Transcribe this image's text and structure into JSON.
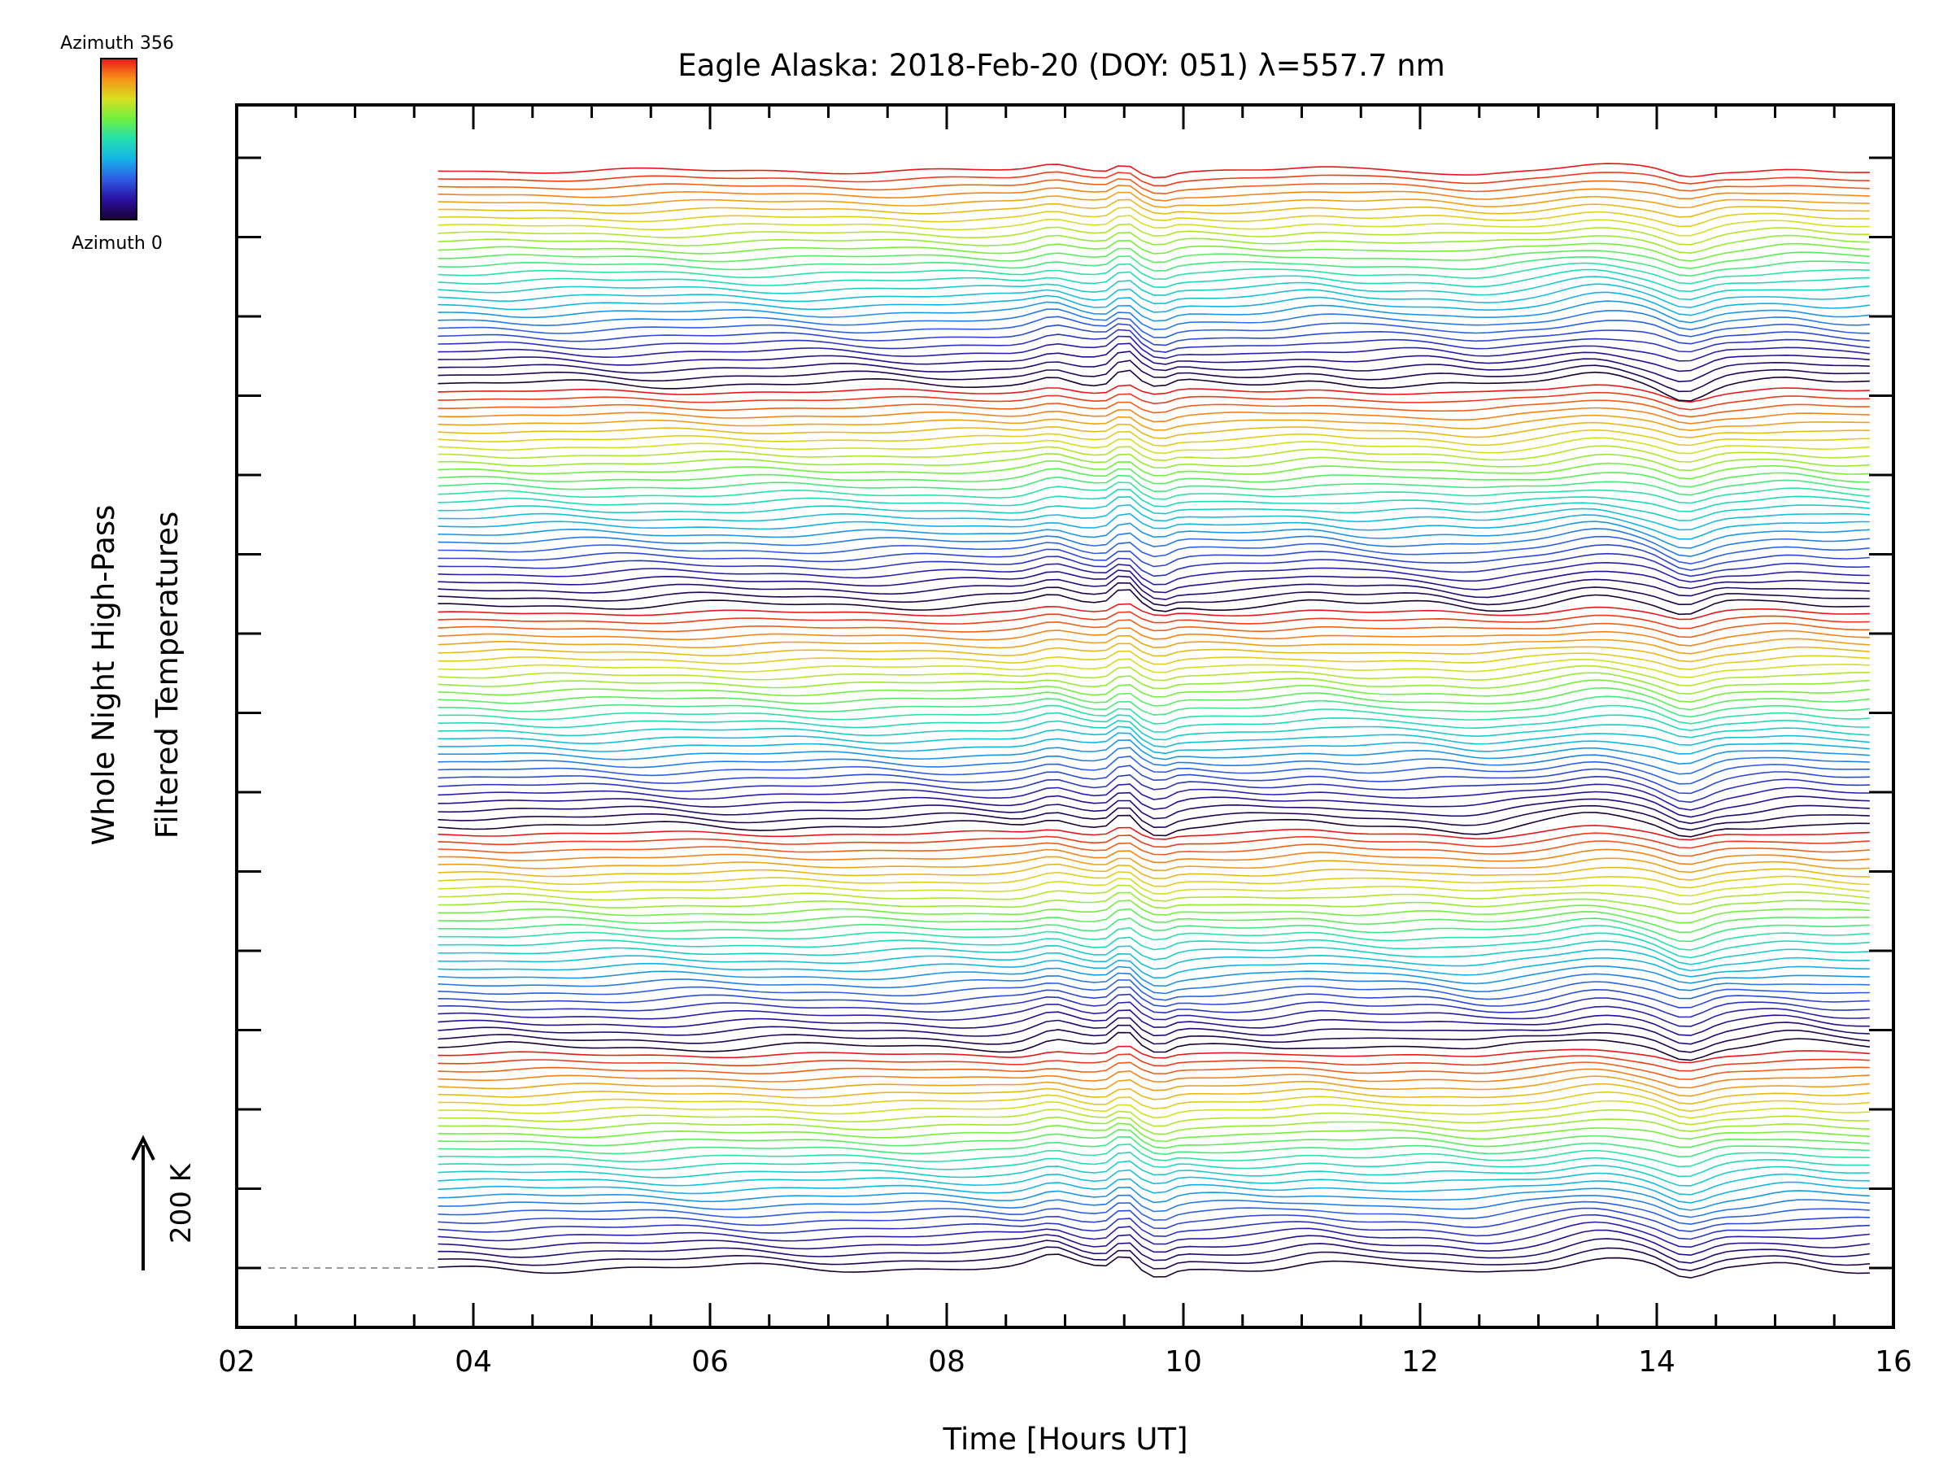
{
  "chart_data": {
    "type": "line",
    "title": "Eagle Alaska: 2018-Feb-20 (DOY: 051) λ=557.7 nm",
    "xlabel": "Time [Hours UT]",
    "ylabel_lines": [
      "Whole Night High-Pass",
      "Filtered Temperatures"
    ],
    "xlim": [
      2,
      16
    ],
    "x_ticks": [
      "02",
      "04",
      "06",
      "08",
      "10",
      "12",
      "14",
      "16"
    ],
    "x_tick_values": [
      2,
      4,
      6,
      8,
      10,
      12,
      14,
      16
    ],
    "grid": false,
    "colorbar": {
      "top_label": "Azimuth 356",
      "bottom_label": "Azimuth 0",
      "colormap": "rainbow",
      "colors": [
        "#1a0033",
        "#2a10a0",
        "#2e5ae6",
        "#14b4e6",
        "#22e0b0",
        "#70f040",
        "#d8e020",
        "#f89018",
        "#e81818"
      ]
    },
    "scale_bar": {
      "label": "200 K",
      "value_K": 200
    },
    "baseline_style": {
      "color": "#9a9a9a",
      "dash": true
    },
    "series_info": {
      "count": 140,
      "x_start": 3.7,
      "x_end": 15.8,
      "azimuth_min": 0,
      "azimuth_max": 356
    },
    "common_perturbations": [
      {
        "hour": 8.9,
        "amp": 0.9,
        "width": 0.2
      },
      {
        "hour": 9.5,
        "amp": 1.6,
        "width": 0.1
      },
      {
        "hour": 9.8,
        "amp": -0.8,
        "width": 0.12
      },
      {
        "hour": 11.1,
        "amp": 0.4,
        "width": 0.3
      },
      {
        "hour": 12.5,
        "amp": -0.4,
        "width": 0.3
      },
      {
        "hour": 13.5,
        "amp": 1.1,
        "width": 0.4
      },
      {
        "hour": 14.25,
        "amp": -1.3,
        "width": 0.22
      },
      {
        "hour": 15.1,
        "amp": 0.4,
        "width": 0.3
      }
    ]
  }
}
